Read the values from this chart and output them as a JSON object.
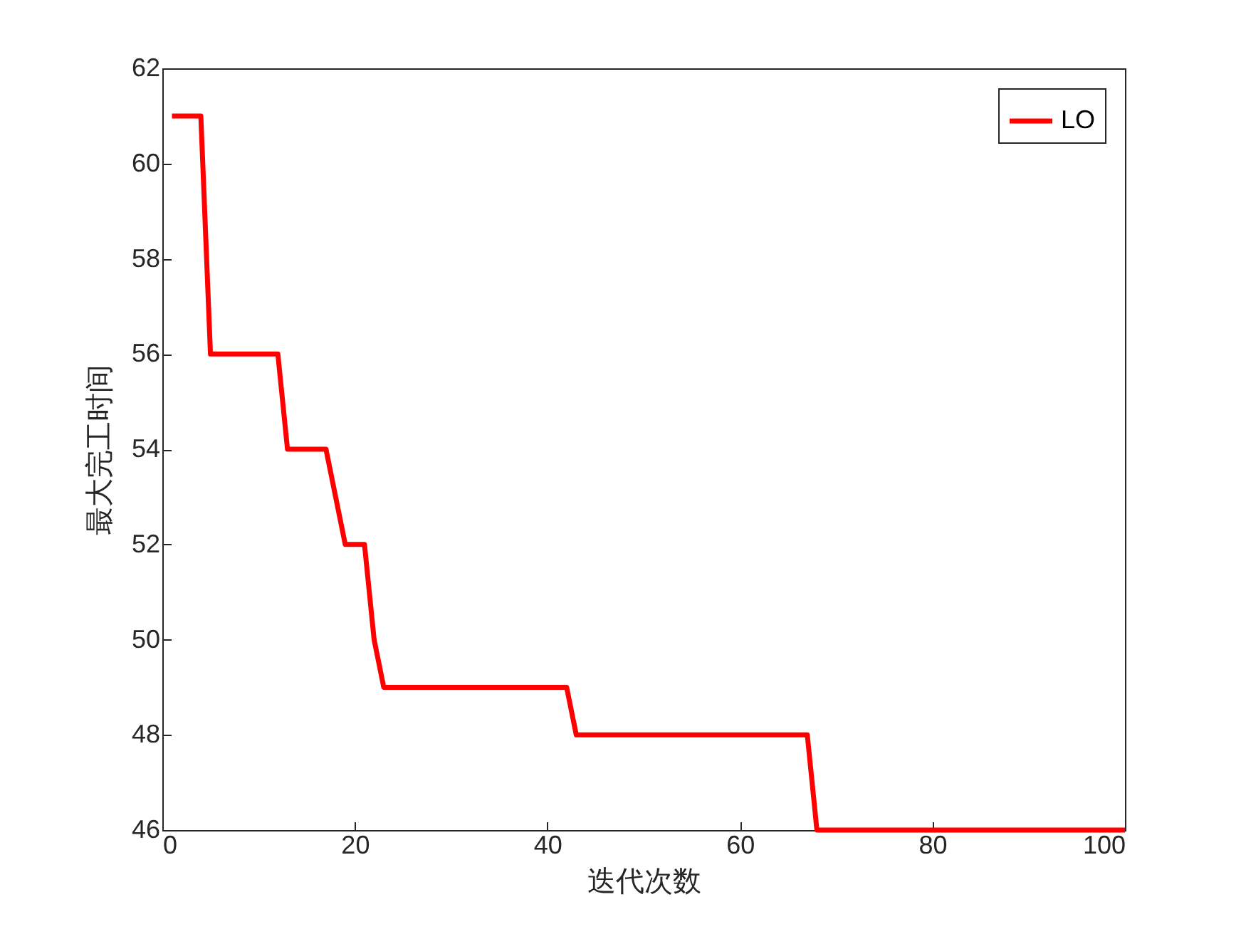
{
  "chart_data": {
    "type": "line",
    "xlabel": "迭代次数",
    "ylabel": "最大完工时间",
    "x": [
      1,
      4,
      5,
      12,
      13,
      17,
      19,
      21,
      22,
      23,
      42,
      43,
      67,
      68,
      100
    ],
    "series": [
      {
        "name": "LO",
        "color": "#ff0000",
        "values": [
          61,
          61,
          56,
          56,
          54,
          54,
          52,
          52,
          50,
          49,
          49,
          48,
          48,
          46,
          46
        ]
      }
    ],
    "xlim": [
      0,
      100
    ],
    "xticks": [
      0,
      20,
      40,
      60,
      80,
      100
    ],
    "ylim": [
      46,
      62
    ],
    "yticks": [
      46,
      48,
      50,
      52,
      54,
      56,
      58,
      60,
      62
    ],
    "grid": false,
    "legend": "top right",
    "marker": "none",
    "line_style": "solid"
  }
}
